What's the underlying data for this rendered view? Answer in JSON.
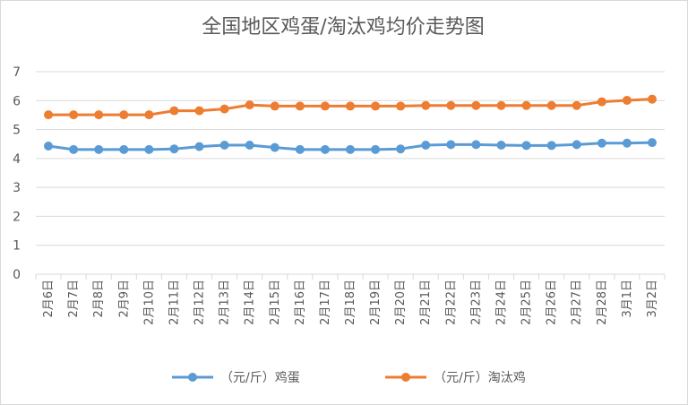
{
  "chart_data": {
    "type": "line",
    "title": "全国地区鸡蛋/淘汰鸡均价走势图",
    "categories": [
      "2月6日",
      "2月7日",
      "2月8日",
      "2月9日",
      "2月10日",
      "2月11日",
      "2月12日",
      "2月13日",
      "2月14日",
      "2月15日",
      "2月16日",
      "2月17日",
      "2月18日",
      "2月19日",
      "2月20日",
      "2月21日",
      "2月22日",
      "2月23日",
      "2月24日",
      "2月25日",
      "2月26日",
      "2月27日",
      "2月28日",
      "3月1日",
      "3月2日"
    ],
    "ylim": [
      0,
      7
    ],
    "yticks": [
      0,
      1,
      2,
      3,
      4,
      5,
      6,
      7
    ],
    "grid": true,
    "legend_position": "bottom",
    "series": [
      {
        "name": "（元/斤）鸡蛋",
        "color": "#5b9bd5",
        "values": [
          4.43,
          4.31,
          4.31,
          4.31,
          4.31,
          4.33,
          4.41,
          4.46,
          4.46,
          4.38,
          4.31,
          4.31,
          4.31,
          4.31,
          4.33,
          4.46,
          4.48,
          4.48,
          4.46,
          4.45,
          4.45,
          4.48,
          4.53,
          4.53,
          4.55
        ]
      },
      {
        "name": "（元/斤）淘汰鸡",
        "color": "#ed7d31",
        "values": [
          5.51,
          5.51,
          5.51,
          5.51,
          5.51,
          5.65,
          5.65,
          5.71,
          5.85,
          5.81,
          5.81,
          5.81,
          5.81,
          5.81,
          5.81,
          5.83,
          5.83,
          5.83,
          5.83,
          5.83,
          5.83,
          5.83,
          5.96,
          6.01,
          6.05
        ]
      }
    ]
  }
}
